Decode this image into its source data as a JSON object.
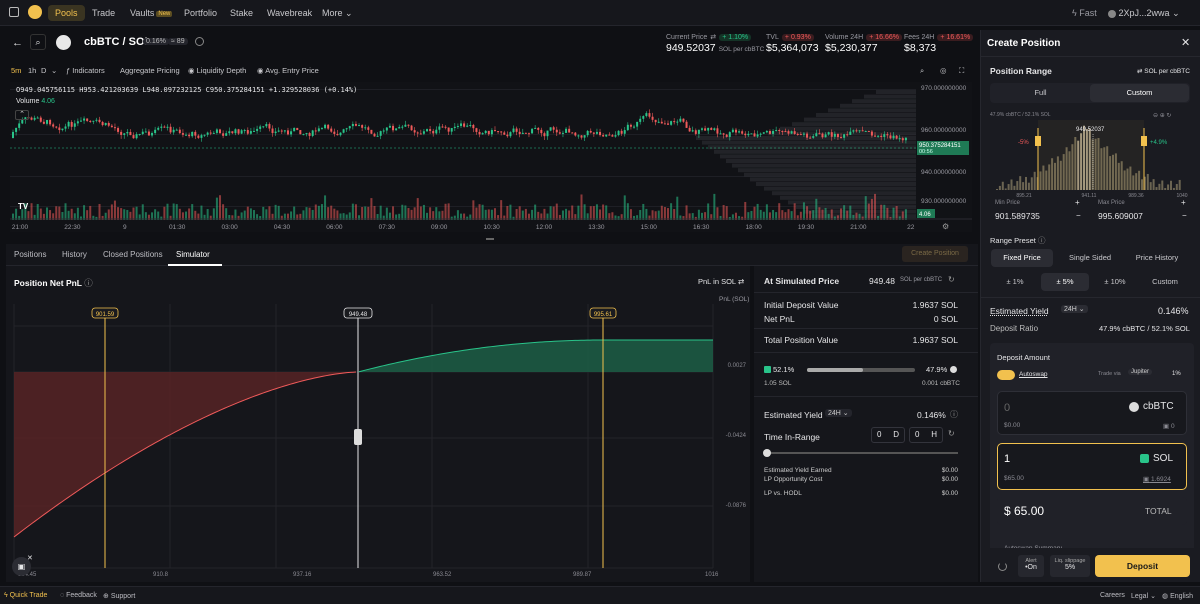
{
  "nav": {
    "items": [
      "Pools",
      "Trade",
      "Vaults",
      "Portfolio",
      "Stake",
      "Wavebreak",
      "More"
    ],
    "new_badge": "New",
    "fast_label": "Fast",
    "wallet": "2XpJ...2wwa"
  },
  "pair": {
    "name": "cbBTC / SOL",
    "fee": "0.16%",
    "bin_step": "89",
    "current_price_label": "Current Price",
    "current_price_change": "+ 1.10%",
    "current_price": "949.52037",
    "current_price_unit": "SOL per cbBTC",
    "tvl_label": "TVL",
    "tvl_change": "+ 0.93%",
    "tvl": "$5,364,073",
    "volume_label": "Volume 24H",
    "volume_change": "+ 16.66%",
    "volume": "$5,230,377",
    "fees_label": "Fees 24H",
    "fees_change": "+ 16.61%",
    "fees": "$8,373"
  },
  "toolbar": {
    "timeframes": [
      "5m",
      "1h",
      "D"
    ],
    "indicators": "Indicators",
    "aggregate": "Aggregate Pricing",
    "liquidity": "Liquidity Depth",
    "avg_entry": "Avg. Entry Price"
  },
  "chart": {
    "ohlc": "O949.045756115  H953.421203639  L948.097232125  C950.375284151  +1.329528036 (+0.14%)",
    "volume_label": "Volume",
    "volume_value": "4.06",
    "y_ticks": [
      "970.000000000",
      "960.000000000",
      "940.000000000",
      "930.000000000"
    ],
    "price_tag": "950.375284151",
    "price_tag2": "00:56",
    "vol_tag": "4.06",
    "x_ticks": [
      "21:00",
      "22:30",
      "9",
      "01:30",
      "03:00",
      "04:30",
      "06:00",
      "07:30",
      "09:00",
      "10:30",
      "12:00",
      "13:30",
      "15:00",
      "16:30",
      "18:00",
      "19:30",
      "21:00",
      "22"
    ]
  },
  "tabs": {
    "items": [
      "Positions",
      "History",
      "Closed Positions",
      "Simulator"
    ],
    "create_position": "Create Position"
  },
  "sim": {
    "title": "Position Net PnL",
    "pnl_unit": "PnL in SOL",
    "axis_unit": "PnL (SOL)",
    "min_tag": "901.59",
    "cur_tag": "949.48",
    "max_tag": "995.61",
    "y_ticks": [
      "0.0027",
      "-0.0424",
      "-0.0876"
    ],
    "x_ticks": [
      "884.45",
      "910.8",
      "937.16",
      "963.52",
      "989.87",
      "1016"
    ]
  },
  "simright": {
    "at_price_label": "At Simulated Price",
    "at_price": "949.48",
    "at_price_unit": "SOL per cbBTC",
    "initial_label": "Initial Deposit Value",
    "initial": "1.9637 SOL",
    "netpnl_label": "Net PnL",
    "netpnl": "0 SOL",
    "total_label": "Total Position Value",
    "total": "1.9637 SOL",
    "left_pct": "52.1%",
    "right_pct": "47.9%",
    "left_amt": "1.05 SOL",
    "right_amt": "0.001 cbBTC",
    "yield_label": "Estimated Yield",
    "yield_period": "24H",
    "yield": "0.146%",
    "tir_label": "Time In-Range",
    "tir_d": "0",
    "tir_d_unit": "D",
    "tir_h": "0",
    "tir_h_unit": "H",
    "rows": [
      {
        "label": "Estimated Yield Earned",
        "value": "$0.00"
      },
      {
        "label": "LP Opportunity Cost",
        "value": "$0.00"
      },
      {
        "label": "LP vs. HODL",
        "value": "$0.00"
      }
    ]
  },
  "create": {
    "title": "Create Position",
    "range_label": "Position Range",
    "range_unit": "SOL per cbBTC",
    "full": "Full",
    "custom": "Custom",
    "hist_caption": "47.9% cbBTC / 52.1% SOL",
    "hist_minus": "-5%",
    "hist_price": "949.52037",
    "hist_plus": "+4.9%",
    "hist_ticks": [
      "895.21",
      "941.11",
      "989.36",
      "1040"
    ],
    "min_label": "Min Price",
    "min_val": "901.589735",
    "max_label": "Max Price",
    "max_val": "995.609007",
    "preset_label": "Range Preset",
    "presets": [
      "Fixed Price",
      "Single Sided",
      "Price History"
    ],
    "pcts": [
      "± 1%",
      "± 5%",
      "± 10%",
      "Custom"
    ],
    "yield_label": "Estimated Yield",
    "yield_period": "24H",
    "yield": "0.146%",
    "ratio_label": "Deposit Ratio",
    "ratio": "47.9% cbBTC / 52.1% SOL",
    "deposit_label": "Deposit Amount",
    "autoswap": "Autoswap",
    "trade_via": "Trade via",
    "jupiter": "Jupiter",
    "slip": "1%",
    "token1_amt": "0",
    "token1": "cbBTC",
    "token1_usd": "$0.00",
    "token1_bal": "0",
    "token2_amt": "1",
    "token2": "SOL",
    "token2_usd": "$65.00",
    "token2_bal": "1.6924",
    "total_amt": "$ 65.00",
    "total_label": "TOTAL",
    "summary": "Autoswap Summary",
    "alert_label": "Alert",
    "alert_val": "On",
    "liq_label": "Liq. slippage",
    "liq_val": "5%",
    "deposit_btn": "Deposit"
  },
  "footer": {
    "quick_trade": "Quick Trade",
    "feedback": "Feedback",
    "support": "Support",
    "careers": "Careers",
    "legal": "Legal",
    "english": "English"
  },
  "colors": {
    "accent": "#f2c14e",
    "green": "#29c48a",
    "red": "#ef5a5a",
    "bg": "#0f1014"
  }
}
